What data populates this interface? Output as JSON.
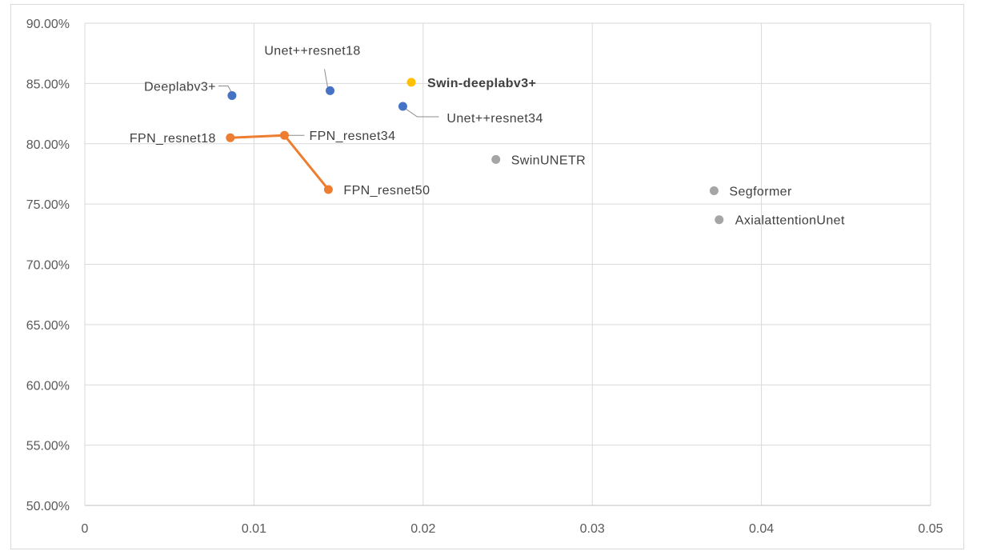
{
  "chart_data": {
    "type": "scatter",
    "title": "",
    "xlabel": "",
    "ylabel": "",
    "xlim": [
      0,
      0.05
    ],
    "ylim": [
      0.5,
      0.9
    ],
    "x_ticks": [
      0,
      0.01,
      0.02,
      0.03,
      0.04,
      0.05
    ],
    "x_tick_labels": [
      "0",
      "0.01",
      "0.02",
      "0.03",
      "0.04",
      "0.05"
    ],
    "y_ticks": [
      0.5,
      0.55,
      0.6,
      0.65,
      0.7,
      0.75,
      0.8,
      0.85,
      0.9
    ],
    "y_tick_labels": [
      "50.00%",
      "55.00%",
      "60.00%",
      "65.00%",
      "70.00%",
      "75.00%",
      "80.00%",
      "85.00%",
      "90.00%"
    ],
    "grid": true,
    "legend": "none",
    "colors": {
      "blue": "#4472c4",
      "orange": "#ed7d31",
      "gold": "#ffc000",
      "gray": "#a5a5a5"
    },
    "points": [
      {
        "label": "Deeplabv3+",
        "x": 0.0087,
        "y": 0.84,
        "color": "#4472c4"
      },
      {
        "label": "Unet++resnet18",
        "x": 0.0145,
        "y": 0.844,
        "color": "#4472c4"
      },
      {
        "label": "Unet++resnet34",
        "x": 0.0188,
        "y": 0.831,
        "color": "#4472c4"
      },
      {
        "label": "Swin-deeplabv3+",
        "x": 0.0193,
        "y": 0.851,
        "color": "#ffc000",
        "bold": true
      },
      {
        "label": "SwinUNETR",
        "x": 0.0243,
        "y": 0.787,
        "color": "#a5a5a5"
      },
      {
        "label": "Segformer",
        "x": 0.0372,
        "y": 0.761,
        "color": "#a5a5a5"
      },
      {
        "label": "AxialattentionUnet",
        "x": 0.0375,
        "y": 0.737,
        "color": "#a5a5a5"
      },
      {
        "label": "FPN_resnet18",
        "x": 0.0086,
        "y": 0.805,
        "color": "#ed7d31"
      },
      {
        "label": "FPN_resnet34",
        "x": 0.0118,
        "y": 0.807,
        "color": "#ed7d31"
      },
      {
        "label": "FPN_resnet50",
        "x": 0.0144,
        "y": 0.762,
        "color": "#ed7d31"
      }
    ],
    "line_series": [
      {
        "points": [
          "FPN_resnet18",
          "FPN_resnet34",
          "FPN_resnet50"
        ],
        "color": "#ed7d31"
      }
    ]
  }
}
